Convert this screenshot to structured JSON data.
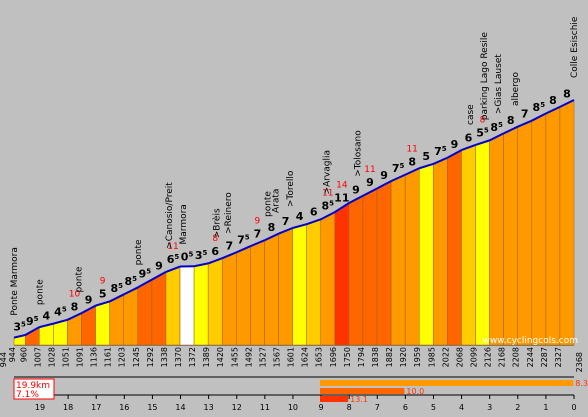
{
  "chart_data": {
    "type": "area",
    "title": "",
    "start_altitude_label": "944",
    "end_altitude_label": "2368",
    "watermark": "www.cyclingcols.com",
    "summary": {
      "distance": "19.9km",
      "avg_gradient": "7.1%"
    },
    "steepest": [
      {
        "label": "8.3",
        "span_km": 9.0
      },
      {
        "label": "10.0",
        "span_km": 3.0
      },
      {
        "label": "13.1",
        "span_km": 1.0
      }
    ],
    "km_ticks": [
      "19",
      "18",
      "17",
      "16",
      "15",
      "14",
      "13",
      "12",
      "11",
      "10",
      "9",
      "8",
      "7",
      "6",
      "5",
      "4",
      "3",
      "2",
      "1",
      "0"
    ],
    "segments": [
      {
        "len": 0.4,
        "start_alt": 944,
        "grad": "3",
        "sup": "5",
        "max": "",
        "color": "#ffff00"
      },
      {
        "len": 0.5,
        "start_alt": 960,
        "grad": "9",
        "sup": "5",
        "max": "",
        "color": "#ff6600"
      },
      {
        "len": 0.5,
        "start_alt": 1007,
        "grad": "4",
        "sup": "",
        "max": "",
        "color": "#ffff00"
      },
      {
        "len": 0.5,
        "start_alt": 1028,
        "grad": "4",
        "sup": "5",
        "max": "",
        "color": "#ffff00"
      },
      {
        "len": 0.5,
        "start_alt": 1051,
        "grad": "8",
        "sup": "",
        "max": "10",
        "color": "#ff9900"
      },
      {
        "len": 0.5,
        "start_alt": 1091,
        "grad": "9",
        "sup": "",
        "max": "",
        "color": "#ff6600"
      },
      {
        "len": 0.5,
        "start_alt": 1136,
        "grad": "5",
        "sup": "",
        "max": "9",
        "color": "#ffff00"
      },
      {
        "len": 0.5,
        "start_alt": 1161,
        "grad": "8",
        "sup": "5",
        "max": "",
        "color": "#ff9900"
      },
      {
        "len": 0.5,
        "start_alt": 1203,
        "grad": "8",
        "sup": "5",
        "max": "",
        "color": "#ff9900"
      },
      {
        "len": 0.5,
        "start_alt": 1245,
        "grad": "9",
        "sup": "5",
        "max": "",
        "color": "#ff6600"
      },
      {
        "len": 0.5,
        "start_alt": 1292,
        "grad": "9",
        "sup": "",
        "max": "",
        "color": "#ff6600"
      },
      {
        "len": 0.5,
        "start_alt": 1338,
        "grad": "6",
        "sup": "5",
        "max": "11",
        "color": "#ffcc00"
      },
      {
        "len": 0.5,
        "start_alt": 1370,
        "grad": "0",
        "sup": "5",
        "max": "",
        "color": "#ffffff"
      },
      {
        "len": 0.5,
        "start_alt": 1372,
        "grad": "3",
        "sup": "5",
        "max": "",
        "color": "#ffff00"
      },
      {
        "len": 0.5,
        "start_alt": 1389,
        "grad": "6",
        "sup": "",
        "max": "8",
        "color": "#ffcc00"
      },
      {
        "len": 0.5,
        "start_alt": 1420,
        "grad": "7",
        "sup": "",
        "max": "",
        "color": "#ff9900"
      },
      {
        "len": 0.5,
        "start_alt": 1455,
        "grad": "7",
        "sup": "5",
        "max": "",
        "color": "#ff9900"
      },
      {
        "len": 0.5,
        "start_alt": 1492,
        "grad": "7",
        "sup": "",
        "max": "9",
        "color": "#ff9900"
      },
      {
        "len": 0.5,
        "start_alt": 1527,
        "grad": "8",
        "sup": "",
        "max": "",
        "color": "#ff9900"
      },
      {
        "len": 0.5,
        "start_alt": 1567,
        "grad": "7",
        "sup": "",
        "max": "",
        "color": "#ff9900"
      },
      {
        "len": 0.5,
        "start_alt": 1601,
        "grad": "4",
        "sup": "",
        "max": "",
        "color": "#ffff00"
      },
      {
        "len": 0.5,
        "start_alt": 1624,
        "grad": "6",
        "sup": "",
        "max": "",
        "color": "#ffcc00"
      },
      {
        "len": 0.5,
        "start_alt": 1653,
        "grad": "8",
        "sup": "5",
        "max": "11",
        "color": "#ff9900"
      },
      {
        "len": 0.5,
        "start_alt": 1696,
        "grad": "11",
        "sup": "",
        "max": "14",
        "color": "#ff3300"
      },
      {
        "len": 0.5,
        "start_alt": 1750,
        "grad": "9",
        "sup": "",
        "max": "",
        "color": "#ff6600"
      },
      {
        "len": 0.5,
        "start_alt": 1794,
        "grad": "9",
        "sup": "",
        "max": "11",
        "color": "#ff6600"
      },
      {
        "len": 0.5,
        "start_alt": 1838,
        "grad": "9",
        "sup": "",
        "max": "",
        "color": "#ff6600"
      },
      {
        "len": 0.5,
        "start_alt": 1882,
        "grad": "7",
        "sup": "5",
        "max": "",
        "color": "#ff9900"
      },
      {
        "len": 0.5,
        "start_alt": 1920,
        "grad": "8",
        "sup": "",
        "max": "11",
        "color": "#ff9900"
      },
      {
        "len": 0.5,
        "start_alt": 1959,
        "grad": "5",
        "sup": "",
        "max": "",
        "color": "#ffff00"
      },
      {
        "len": 0.5,
        "start_alt": 1985,
        "grad": "7",
        "sup": "5",
        "max": "",
        "color": "#ff9900"
      },
      {
        "len": 0.5,
        "start_alt": 2022,
        "grad": "9",
        "sup": "",
        "max": "",
        "color": "#ff6600"
      },
      {
        "len": 0.5,
        "start_alt": 2068,
        "grad": "6",
        "sup": "",
        "max": "",
        "color": "#ffcc00"
      },
      {
        "len": 0.5,
        "start_alt": 2099,
        "grad": "5",
        "sup": "5",
        "max": "8",
        "color": "#ffff00"
      },
      {
        "len": 0.5,
        "start_alt": 2126,
        "grad": "8",
        "sup": "5",
        "max": "",
        "color": "#ff9900"
      },
      {
        "len": 0.5,
        "start_alt": 2168,
        "grad": "8",
        "sup": "",
        "max": "",
        "color": "#ff9900"
      },
      {
        "len": 0.5,
        "start_alt": 2208,
        "grad": "7",
        "sup": "",
        "max": "",
        "color": "#ff9900"
      },
      {
        "len": 0.5,
        "start_alt": 2244,
        "grad": "8",
        "sup": "5",
        "max": "",
        "color": "#ff9900"
      },
      {
        "len": 0.5,
        "start_alt": 2287,
        "grad": "8",
        "sup": "",
        "max": "",
        "color": "#ff9900"
      },
      {
        "len": 0.5,
        "start_alt": 2327,
        "grad": "8",
        "sup": "",
        "max": "",
        "color": "#ff9900"
      }
    ],
    "landmarks": [
      {
        "km": 0.0,
        "label": "Ponte Marmora"
      },
      {
        "km": 0.9,
        "label": "ponte"
      },
      {
        "km": 2.3,
        "label": "ponte"
      },
      {
        "km": 4.4,
        "label": "ponte"
      },
      {
        "km": 5.5,
        "label": ">Canosio/Preit"
      },
      {
        "km": 6.0,
        "label": "Marmora"
      },
      {
        "km": 7.2,
        "label": ">Brèis"
      },
      {
        "km": 7.6,
        "label": ">Reinero"
      },
      {
        "km": 9.0,
        "label": "ponte"
      },
      {
        "km": 9.3,
        "label": "Arata"
      },
      {
        "km": 9.8,
        "label": ">Torello"
      },
      {
        "km": 11.1,
        "label": ">Arvaglia"
      },
      {
        "km": 12.2,
        "label": ">Tolosano"
      },
      {
        "km": 16.2,
        "label": "case"
      },
      {
        "km": 16.7,
        "label": "parking Lago Resile"
      },
      {
        "km": 17.2,
        "label": ">Gias Lauset"
      },
      {
        "km": 17.8,
        "label": "albergo"
      },
      {
        "km": 19.9,
        "label": "Colle Esischie"
      }
    ]
  }
}
